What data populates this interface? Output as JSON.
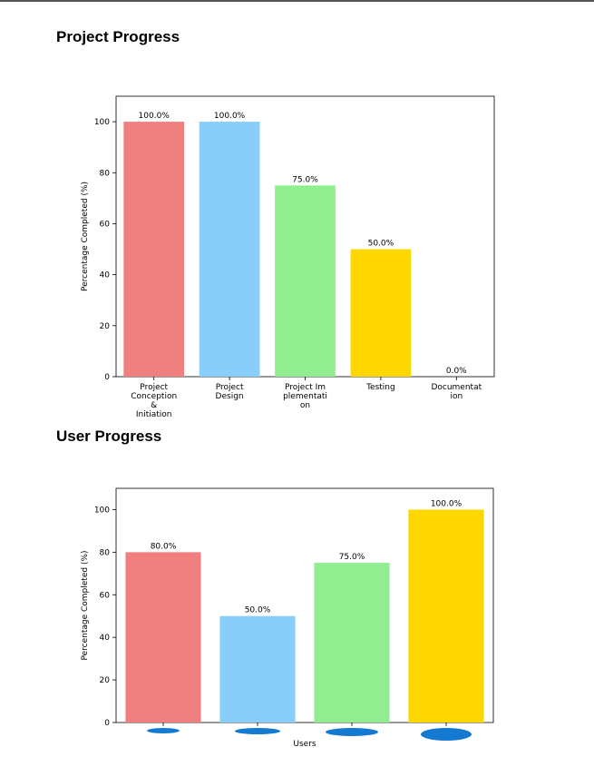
{
  "sections": [
    {
      "title": "Project Progress"
    },
    {
      "title": "User Progress"
    }
  ],
  "chart_data": [
    {
      "type": "bar",
      "categories": [
        [
          "Project",
          "Conception",
          "&",
          "Initiation"
        ],
        [
          "Project",
          "Design"
        ],
        [
          "Project Im",
          "plementati",
          "on"
        ],
        [
          "Testing"
        ],
        [
          "Documentat",
          "ion"
        ]
      ],
      "values": [
        100,
        100,
        75,
        50,
        0
      ],
      "value_labels": [
        "100.0%",
        "100.0%",
        "75.0%",
        "50.0%",
        "0.0%"
      ],
      "colors": [
        "#f08080",
        "#87cefa",
        "#90ee90",
        "#ffd700",
        "#ffd700"
      ],
      "ylabel": "Percentage Completed (%)",
      "xlabel": "",
      "ylim": [
        0,
        110
      ],
      "yticks": [
        0,
        20,
        40,
        60,
        80,
        100
      ],
      "grid": false
    },
    {
      "type": "bar",
      "categories": [
        "",
        "",
        "",
        ""
      ],
      "values": [
        80,
        50,
        75,
        100
      ],
      "value_labels": [
        "80.0%",
        "50.0%",
        "75.0%",
        "100.0%"
      ],
      "colors": [
        "#f08080",
        "#87cefa",
        "#90ee90",
        "#ffd700"
      ],
      "ylabel": "Percentage Completed (%)",
      "xlabel": "Users",
      "ylim": [
        0,
        110
      ],
      "yticks": [
        0,
        20,
        40,
        60,
        80,
        100
      ],
      "grid": false,
      "redaction_color": "#1479d1"
    }
  ]
}
